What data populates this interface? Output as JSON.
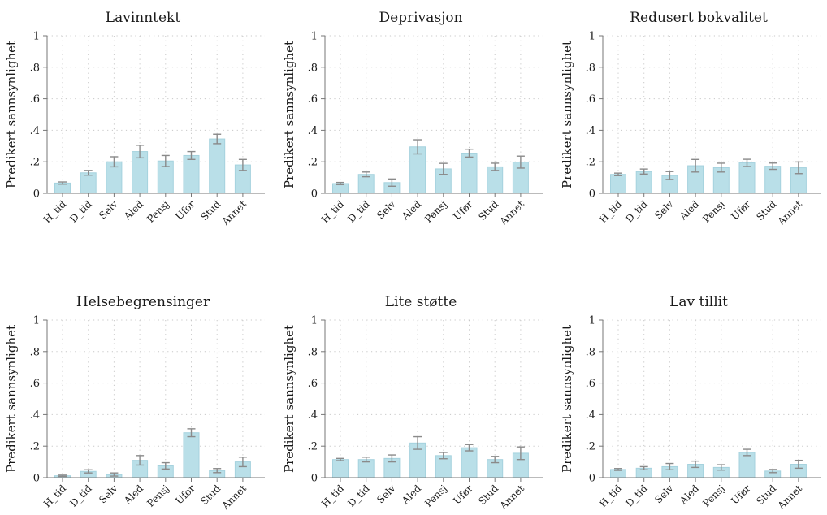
{
  "ylabel": "Predikert sannsynlighet",
  "ytick_labels": [
    "0",
    ".2",
    ".4",
    ".6",
    ".8",
    "1"
  ],
  "bar_color": "#b9dfe8",
  "bar_edge_color": "#a5d2de",
  "error_color": "#8a8a8a",
  "chart_data": [
    {
      "type": "bar",
      "title": "Lavinntekt",
      "ylabel": "Predikert sannsynlighet",
      "ylim": [
        0,
        1
      ],
      "grid": true,
      "categories": [
        "H_tid",
        "D_tid",
        "Selv",
        "Aled",
        "Pensj",
        "Ufør",
        "Stud",
        "Annet"
      ],
      "values": [
        0.065,
        0.13,
        0.2,
        0.265,
        0.205,
        0.24,
        0.345,
        0.18
      ],
      "ci_low": [
        0.058,
        0.115,
        0.168,
        0.225,
        0.17,
        0.215,
        0.315,
        0.145
      ],
      "ci_high": [
        0.072,
        0.145,
        0.232,
        0.305,
        0.24,
        0.265,
        0.375,
        0.215
      ]
    },
    {
      "type": "bar",
      "title": "Deprivasjon",
      "ylabel": "Predikert sannsynlighet",
      "ylim": [
        0,
        1
      ],
      "grid": true,
      "categories": [
        "H_tid",
        "D_tid",
        "Selv",
        "Aled",
        "Pensj",
        "Ufør",
        "Stud",
        "Annet"
      ],
      "values": [
        0.062,
        0.12,
        0.068,
        0.295,
        0.155,
        0.255,
        0.168,
        0.198
      ],
      "ci_low": [
        0.055,
        0.105,
        0.045,
        0.25,
        0.12,
        0.23,
        0.145,
        0.16
      ],
      "ci_high": [
        0.069,
        0.135,
        0.091,
        0.34,
        0.19,
        0.28,
        0.191,
        0.236
      ]
    },
    {
      "type": "bar",
      "title": "Redusert bokvalitet",
      "ylabel": "Predikert sannsynlighet",
      "ylim": [
        0,
        1
      ],
      "grid": true,
      "categories": [
        "H_tid",
        "D_tid",
        "Selv",
        "Aled",
        "Pensj",
        "Ufør",
        "Stud",
        "Annet"
      ],
      "values": [
        0.12,
        0.138,
        0.113,
        0.175,
        0.163,
        0.193,
        0.172,
        0.162
      ],
      "ci_low": [
        0.112,
        0.122,
        0.088,
        0.135,
        0.135,
        0.17,
        0.152,
        0.125
      ],
      "ci_high": [
        0.128,
        0.154,
        0.138,
        0.215,
        0.191,
        0.216,
        0.192,
        0.199
      ]
    },
    {
      "type": "bar",
      "title": "Helsebegrensinger",
      "ylabel": "Predikert sannsynlighet",
      "ylim": [
        0,
        1
      ],
      "grid": true,
      "categories": [
        "H_tid",
        "D_tid",
        "Selv",
        "Aled",
        "Pensj",
        "Ufør",
        "Stud",
        "Annet"
      ],
      "values": [
        0.012,
        0.04,
        0.02,
        0.11,
        0.075,
        0.285,
        0.045,
        0.1
      ],
      "ci_low": [
        0.008,
        0.03,
        0.01,
        0.08,
        0.055,
        0.26,
        0.032,
        0.07
      ],
      "ci_high": [
        0.016,
        0.05,
        0.03,
        0.14,
        0.095,
        0.31,
        0.058,
        0.13
      ]
    },
    {
      "type": "bar",
      "title": "Lite støtte",
      "ylabel": "Predikert sannsynlighet",
      "ylim": [
        0,
        1
      ],
      "grid": true,
      "categories": [
        "H_tid",
        "D_tid",
        "Selv",
        "Aled",
        "Pensj",
        "Ufør",
        "Stud",
        "Annet"
      ],
      "values": [
        0.115,
        0.115,
        0.122,
        0.22,
        0.14,
        0.19,
        0.115,
        0.155
      ],
      "ci_low": [
        0.108,
        0.1,
        0.1,
        0.18,
        0.12,
        0.17,
        0.095,
        0.115
      ],
      "ci_high": [
        0.122,
        0.13,
        0.144,
        0.26,
        0.16,
        0.21,
        0.135,
        0.195
      ]
    },
    {
      "type": "bar",
      "title": "Lav tillit",
      "ylabel": "Predikert sannsynlighet",
      "ylim": [
        0,
        1
      ],
      "grid": true,
      "categories": [
        "H_tid",
        "D_tid",
        "Selv",
        "Aled",
        "Pensj",
        "Ufør",
        "Stud",
        "Annet"
      ],
      "values": [
        0.052,
        0.06,
        0.07,
        0.085,
        0.065,
        0.16,
        0.042,
        0.085
      ],
      "ci_low": [
        0.046,
        0.05,
        0.05,
        0.065,
        0.048,
        0.14,
        0.032,
        0.06
      ],
      "ci_high": [
        0.058,
        0.07,
        0.09,
        0.105,
        0.082,
        0.18,
        0.052,
        0.11
      ]
    }
  ]
}
